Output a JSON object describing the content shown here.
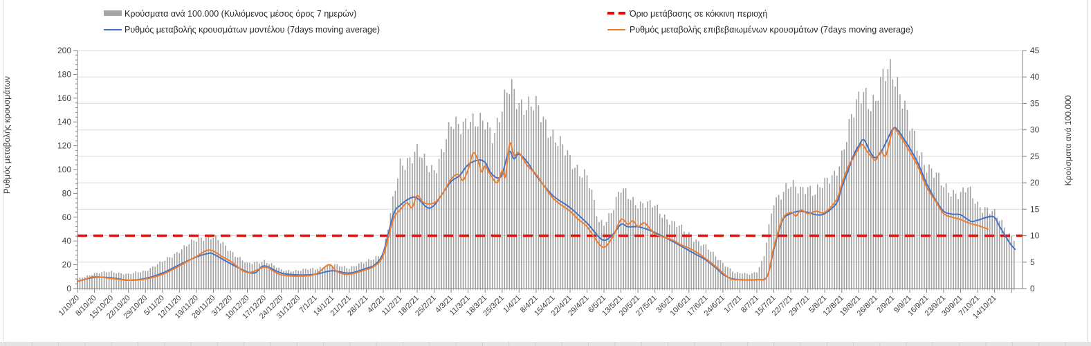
{
  "colors": {
    "bars": "#a0a0a0",
    "model_line": "#4472c4",
    "confirmed_line": "#ed7d31",
    "threshold": "#fe0000",
    "grid": "#dadada",
    "axis": "#808080",
    "text": "#404040",
    "frame": "#d6d6d6",
    "bottom_strip": "#e4e4e4"
  },
  "legend": {
    "items": [
      {
        "id": "bars",
        "label": "Κρούσματα ανά 100.000 (Κυλιόμενος μέσος όρος 7 ημερών)",
        "swatch": "thick-gray-bar"
      },
      {
        "id": "model",
        "label": "Ρυθμός μεταβολής κρουσμάτων μοντέλου (7days moving average)",
        "swatch": "blue-line"
      },
      {
        "id": "threshold",
        "label": "Όριο μετάβασης σε κόκκινη περιοχή",
        "swatch": "red-dashed-line"
      },
      {
        "id": "confirmed",
        "label": "Ρυθμός μεταβολής επιβεβαιωμένων κρουσμάτων (7days moving average)",
        "swatch": "orange-line"
      }
    ]
  },
  "chart_data": {
    "type": "combo bar+line",
    "left_axis": {
      "title": "Ρυθμός μεταβολής κρουσμάτων",
      "min": 0,
      "max": 200,
      "step": 20
    },
    "right_axis": {
      "title": "Κρούσματα ανά 100.000",
      "min": 0,
      "max": 45,
      "step": 5
    },
    "threshold": {
      "label": "Όριο μετάβασης σε κόκκινη περιοχή",
      "axis": "right",
      "value": 10
    },
    "x_tick_labels": [
      "1/10/20",
      "8/10/20",
      "15/10/20",
      "22/10/20",
      "29/10/20",
      "5/11/20",
      "12/11/20",
      "19/11/20",
      "26/11/20",
      "3/12/20",
      "10/12/20",
      "17/12/20",
      "24/12/20",
      "31/12/20",
      "7/1/21",
      "14/1/21",
      "21/1/21",
      "28/1/21",
      "4/2/21",
      "11/2/21",
      "18/2/21",
      "25/2/21",
      "4/3/21",
      "11/3/21",
      "18/3/21",
      "25/3/21",
      "1/4/21",
      "8/4/21",
      "15/4/21",
      "22/4/21",
      "29/4/21",
      "6/5/21",
      "13/5/21",
      "20/5/21",
      "27/5/21",
      "3/6/21",
      "10/6/21",
      "17/6/21",
      "24/6/21",
      "1/7/21",
      "8/7/21",
      "15/7/21",
      "22/7/21",
      "29/7/21",
      "5/8/21",
      "12/8/21",
      "19/8/21",
      "26/8/21",
      "2/9/21",
      "9/9/21",
      "16/9/21",
      "23/9/21",
      "30/9/21",
      "7/10/21",
      "14/10/21"
    ],
    "points_note": "points are [week_index, value]; week_index 0 = 1/10/20, one tick per week; bar series values on right axis, line series on left axis",
    "series": [
      {
        "name": "Κρούσματα ανά 100.000 (Κυλιόμενος μέσος όρος 7 ημερών)",
        "type": "bar",
        "axis": "right",
        "points": [
          [
            0,
            1.8
          ],
          [
            1,
            2.9
          ],
          [
            2,
            3.2
          ],
          [
            3,
            2.7
          ],
          [
            4,
            3.4
          ],
          [
            5,
            5
          ],
          [
            6,
            7.2
          ],
          [
            7,
            9.2
          ],
          [
            7.5,
            9.9
          ],
          [
            8,
            9.7
          ],
          [
            8.5,
            8.5
          ],
          [
            9,
            7.2
          ],
          [
            10,
            4.6
          ],
          [
            11,
            5.3
          ],
          [
            12,
            3.5
          ],
          [
            13,
            3.4
          ],
          [
            14,
            3.8
          ],
          [
            15,
            4.5
          ],
          [
            16,
            4
          ],
          [
            17,
            5
          ],
          [
            18,
            6.8
          ],
          [
            18.5,
            15
          ],
          [
            19,
            23.6
          ],
          [
            20,
            25.7
          ],
          [
            20.5,
            23.5
          ],
          [
            21,
            22.7
          ],
          [
            21.5,
            26
          ],
          [
            22,
            30.4
          ],
          [
            22.5,
            31.4
          ],
          [
            23,
            32.2
          ],
          [
            23.5,
            30.5
          ],
          [
            24,
            31.5
          ],
          [
            24.5,
            29.5
          ],
          [
            25,
            33.8
          ],
          [
            25.5,
            38
          ],
          [
            26,
            35.6
          ],
          [
            26.6,
            34.5
          ],
          [
            27,
            34
          ],
          [
            28,
            29.3
          ],
          [
            29,
            24.2
          ],
          [
            30,
            21.3
          ],
          [
            30.7,
            12.4
          ],
          [
            31,
            12.6
          ],
          [
            31.4,
            14.5
          ],
          [
            32,
            18.5
          ],
          [
            33,
            16.2
          ],
          [
            34,
            15.5
          ],
          [
            35,
            12.5
          ],
          [
            36,
            10.3
          ],
          [
            37,
            7.8
          ],
          [
            38,
            4.9
          ],
          [
            38.7,
            2.9
          ],
          [
            39,
            2.9
          ],
          [
            39.6,
            2.8
          ],
          [
            40,
            3.2
          ],
          [
            40.4,
            5.6
          ],
          [
            41,
            16.6
          ],
          [
            41.7,
            19.2
          ],
          [
            42,
            19.4
          ],
          [
            42.5,
            18.3
          ],
          [
            43,
            19.6
          ],
          [
            43.4,
            18.2
          ],
          [
            44,
            19.6
          ],
          [
            44.6,
            22
          ],
          [
            45,
            25.3
          ],
          [
            45.6,
            32
          ],
          [
            46,
            35.8
          ],
          [
            46.3,
            38.5
          ],
          [
            46.6,
            35.5
          ],
          [
            47,
            34.9
          ],
          [
            47.5,
            40
          ],
          [
            47.8,
            42
          ],
          [
            48,
            41.9
          ],
          [
            48.3,
            39
          ],
          [
            49,
            30.4
          ],
          [
            49.5,
            26.5
          ],
          [
            50,
            23.5
          ],
          [
            51,
            19.2
          ],
          [
            52,
            17.8
          ],
          [
            52.4,
            18.8
          ],
          [
            53,
            16
          ],
          [
            53.5,
            15.2
          ],
          [
            54,
            14
          ],
          [
            54.5,
            12
          ],
          [
            54.9,
            10.2
          ],
          [
            55.2,
            9.6
          ]
        ]
      },
      {
        "name": "Ρυθμός μεταβολής κρουσμάτων μοντέλου (7days moving average)",
        "type": "line",
        "axis": "left",
        "points": [
          [
            0,
            6
          ],
          [
            1,
            9.5
          ],
          [
            2,
            9
          ],
          [
            3,
            7
          ],
          [
            4,
            8.5
          ],
          [
            5,
            13
          ],
          [
            6,
            20
          ],
          [
            7,
            26.5
          ],
          [
            7.7,
            29.5
          ],
          [
            8,
            29
          ],
          [
            9,
            21
          ],
          [
            10,
            14
          ],
          [
            10.5,
            13.5
          ],
          [
            11,
            19
          ],
          [
            12,
            13
          ],
          [
            13,
            11.5
          ],
          [
            14,
            12
          ],
          [
            15,
            15
          ],
          [
            16,
            13
          ],
          [
            17,
            17
          ],
          [
            17.5,
            20
          ],
          [
            18,
            30
          ],
          [
            18.6,
            62
          ],
          [
            19,
            70
          ],
          [
            19.6,
            76
          ],
          [
            20,
            76
          ],
          [
            20.6,
            68
          ],
          [
            21,
            70
          ],
          [
            21.5,
            80
          ],
          [
            22,
            90
          ],
          [
            22.5,
            95
          ],
          [
            23,
            104
          ],
          [
            23.6,
            108
          ],
          [
            24,
            106
          ],
          [
            24.3,
            98
          ],
          [
            24.7,
            93
          ],
          [
            25,
            96
          ],
          [
            25.4,
            115
          ],
          [
            25.7,
            109
          ],
          [
            26,
            113
          ],
          [
            26.5,
            106
          ],
          [
            27,
            95
          ],
          [
            28,
            78
          ],
          [
            29,
            68
          ],
          [
            30,
            55
          ],
          [
            30.9,
            41
          ],
          [
            31.5,
            45
          ],
          [
            32,
            54
          ],
          [
            32.4,
            52
          ],
          [
            33,
            52
          ],
          [
            33.5,
            50
          ],
          [
            34,
            47
          ],
          [
            35,
            40
          ],
          [
            36,
            32
          ],
          [
            36.5,
            28
          ],
          [
            37,
            24
          ],
          [
            37.7,
            16
          ],
          [
            38,
            12
          ],
          [
            38.5,
            8.5
          ],
          [
            39,
            7.5
          ],
          [
            39.5,
            7.2
          ],
          [
            40,
            7.5
          ],
          [
            40.6,
            10
          ],
          [
            41,
            33
          ],
          [
            41.5,
            57
          ],
          [
            42,
            63
          ],
          [
            42.5,
            65
          ],
          [
            43,
            64
          ],
          [
            43.5,
            62
          ],
          [
            44,
            63
          ],
          [
            44.7,
            72
          ],
          [
            45,
            85
          ],
          [
            45.4,
            100
          ],
          [
            45.7,
            112
          ],
          [
            46,
            120
          ],
          [
            46.3,
            125
          ],
          [
            46.7,
            114
          ],
          [
            47,
            110
          ],
          [
            47.4,
            117
          ],
          [
            48,
            134
          ],
          [
            48.3,
            133
          ],
          [
            48.6,
            127
          ],
          [
            49,
            118
          ],
          [
            49.5,
            105
          ],
          [
            50,
            88
          ],
          [
            50.5,
            75
          ],
          [
            51,
            65
          ],
          [
            51.5,
            62.5
          ],
          [
            52,
            62
          ],
          [
            52.6,
            56.5
          ],
          [
            53,
            57.5
          ],
          [
            53.9,
            60.5
          ],
          [
            54.3,
            52
          ],
          [
            54.9,
            38
          ],
          [
            55.2,
            33
          ]
        ]
      },
      {
        "name": "Ρυθμός μεταβολής επιβεβαιωμένων κρουσμάτων (7days moving average)",
        "type": "line",
        "axis": "left",
        "points": [
          [
            0,
            6
          ],
          [
            0.5,
            8
          ],
          [
            1,
            10
          ],
          [
            2,
            8.5
          ],
          [
            3,
            7
          ],
          [
            4,
            8
          ],
          [
            5,
            12
          ],
          [
            6,
            19
          ],
          [
            6.5,
            23
          ],
          [
            7,
            27
          ],
          [
            7.6,
            32
          ],
          [
            8,
            31.5
          ],
          [
            8.5,
            27
          ],
          [
            9,
            23
          ],
          [
            10,
            13.5
          ],
          [
            11,
            18
          ],
          [
            11.5,
            15
          ],
          [
            12,
            11.5
          ],
          [
            13,
            10.5
          ],
          [
            14,
            12
          ],
          [
            14.8,
            20
          ],
          [
            15.3,
            14
          ],
          [
            16,
            12
          ],
          [
            17,
            16
          ],
          [
            17.5,
            19
          ],
          [
            18,
            28
          ],
          [
            18.6,
            58
          ],
          [
            19,
            66
          ],
          [
            19.4,
            72
          ],
          [
            19.7,
            68
          ],
          [
            20,
            78
          ],
          [
            20.4,
            72
          ],
          [
            21,
            72
          ],
          [
            21.5,
            80
          ],
          [
            22,
            92
          ],
          [
            22.4,
            96
          ],
          [
            22.7,
            91
          ],
          [
            23,
            100
          ],
          [
            23.3,
            114
          ],
          [
            23.6,
            107
          ],
          [
            23.8,
            98
          ],
          [
            24,
            103
          ],
          [
            24.3,
            96
          ],
          [
            24.7,
            89
          ],
          [
            25,
            99
          ],
          [
            25.2,
            94
          ],
          [
            25.45,
            122
          ],
          [
            25.7,
            112
          ],
          [
            26,
            114
          ],
          [
            26.5,
            103
          ],
          [
            27,
            96
          ],
          [
            28,
            76
          ],
          [
            29,
            65
          ],
          [
            29.5,
            58
          ],
          [
            30,
            52
          ],
          [
            30.9,
            35
          ],
          [
            31.5,
            43
          ],
          [
            32,
            58
          ],
          [
            32.4,
            54
          ],
          [
            32.7,
            57
          ],
          [
            33,
            52
          ],
          [
            33.4,
            55
          ],
          [
            34,
            46
          ],
          [
            35,
            41
          ],
          [
            35.5,
            37
          ],
          [
            36,
            34
          ],
          [
            36.5,
            30
          ],
          [
            37,
            25
          ],
          [
            37.7,
            17
          ],
          [
            38,
            13
          ],
          [
            38.5,
            8
          ],
          [
            39,
            7.5
          ],
          [
            40,
            7.5
          ],
          [
            40.6,
            10
          ],
          [
            41,
            35
          ],
          [
            41.5,
            58
          ],
          [
            42,
            64
          ],
          [
            42.3,
            61
          ],
          [
            42.6,
            66
          ],
          [
            43,
            63
          ],
          [
            43.5,
            65
          ],
          [
            44,
            64
          ],
          [
            44.7,
            75
          ],
          [
            45,
            88
          ],
          [
            45.4,
            103
          ],
          [
            45.7,
            110
          ],
          [
            46,
            118
          ],
          [
            46.2,
            121
          ],
          [
            46.5,
            115
          ],
          [
            46.8,
            110
          ],
          [
            47,
            108
          ],
          [
            47.3,
            115
          ],
          [
            47.6,
            112
          ],
          [
            48,
            133
          ],
          [
            48.3,
            131
          ],
          [
            49,
            115
          ],
          [
            49.5,
            102
          ],
          [
            50,
            85
          ],
          [
            50.5,
            74
          ],
          [
            51,
            63
          ],
          [
            51.5,
            60
          ],
          [
            52,
            58
          ],
          [
            52.5,
            55
          ],
          [
            53,
            53
          ],
          [
            53.6,
            50
          ]
        ]
      }
    ]
  }
}
